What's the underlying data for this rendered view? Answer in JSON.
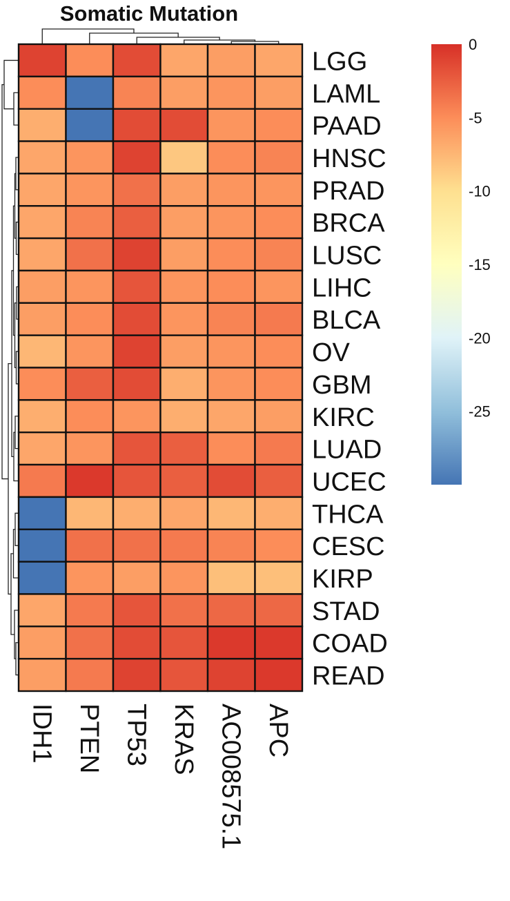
{
  "chart_data": {
    "type": "heatmap",
    "title": "Somatic Mutation",
    "rows": [
      "LGG",
      "LAML",
      "PAAD",
      "HNSC",
      "PRAD",
      "BRCA",
      "LUSC",
      "LIHC",
      "BLCA",
      "OV",
      "GBM",
      "KIRC",
      "LUAD",
      "UCEC",
      "THCA",
      "CESC",
      "KIRP",
      "STAD",
      "COAD",
      "READ"
    ],
    "columns": [
      "IDH1",
      "PTEN",
      "TP53",
      "KRAS",
      "AC008575.1",
      "APC"
    ],
    "values": [
      [
        -1.0,
        -5.0,
        -1.5,
        -6.5,
        -6.0,
        -6.5
      ],
      [
        -5.0,
        -30.0,
        -4.5,
        -6.0,
        -5.5,
        -6.0
      ],
      [
        -7.0,
        -30.0,
        -1.5,
        -1.5,
        -5.5,
        -5.0
      ],
      [
        -6.5,
        -5.5,
        -1.0,
        -8.5,
        -5.0,
        -4.5
      ],
      [
        -6.5,
        -5.5,
        -3.5,
        -6.0,
        -5.5,
        -5.5
      ],
      [
        -6.5,
        -4.5,
        -2.5,
        -6.0,
        -5.5,
        -5.0
      ],
      [
        -6.5,
        -3.5,
        -1.0,
        -6.0,
        -5.0,
        -4.5
      ],
      [
        -6.0,
        -5.5,
        -2.0,
        -5.5,
        -5.0,
        -5.5
      ],
      [
        -6.0,
        -5.0,
        -1.5,
        -5.5,
        -4.5,
        -4.0
      ],
      [
        -7.5,
        -5.5,
        -1.0,
        -6.0,
        -5.5,
        -5.0
      ],
      [
        -5.0,
        -2.5,
        -1.5,
        -7.0,
        -5.5,
        -5.0
      ],
      [
        -7.0,
        -5.0,
        -5.5,
        -7.0,
        -6.5,
        -6.0
      ],
      [
        -6.5,
        -5.5,
        -2.0,
        -2.5,
        -5.0,
        -4.0
      ],
      [
        -4.0,
        -0.5,
        -2.0,
        -2.5,
        -1.5,
        -2.5
      ],
      [
        -30.0,
        -7.5,
        -7.0,
        -6.5,
        -7.5,
        -7.0
      ],
      [
        -30.0,
        -3.5,
        -3.5,
        -4.0,
        -4.5,
        -5.0
      ],
      [
        -30.0,
        -5.5,
        -6.0,
        -5.5,
        -8.0,
        -8.0
      ],
      [
        -6.5,
        -4.0,
        -2.0,
        -3.5,
        -3.0,
        -3.0
      ],
      [
        -6.0,
        -3.5,
        -1.5,
        -2.0,
        -0.5,
        -0.5
      ],
      [
        -6.0,
        -4.0,
        -1.0,
        -2.0,
        -1.0,
        -0.5
      ]
    ],
    "scale": {
      "min": -30,
      "max": 0,
      "ticks": [
        0,
        -5,
        -10,
        -15,
        -20,
        -25
      ],
      "tick_labels": [
        "0",
        "-5",
        "-10",
        "-15",
        "-20",
        "-25"
      ],
      "colors": [
        "#4575b4",
        "#91bfdb",
        "#e0f3f8",
        "#ffffbf",
        "#fee090",
        "#fc8d59",
        "#d73027"
      ]
    },
    "legend": "right",
    "dendrograms": {
      "rows": true,
      "columns": true
    }
  }
}
